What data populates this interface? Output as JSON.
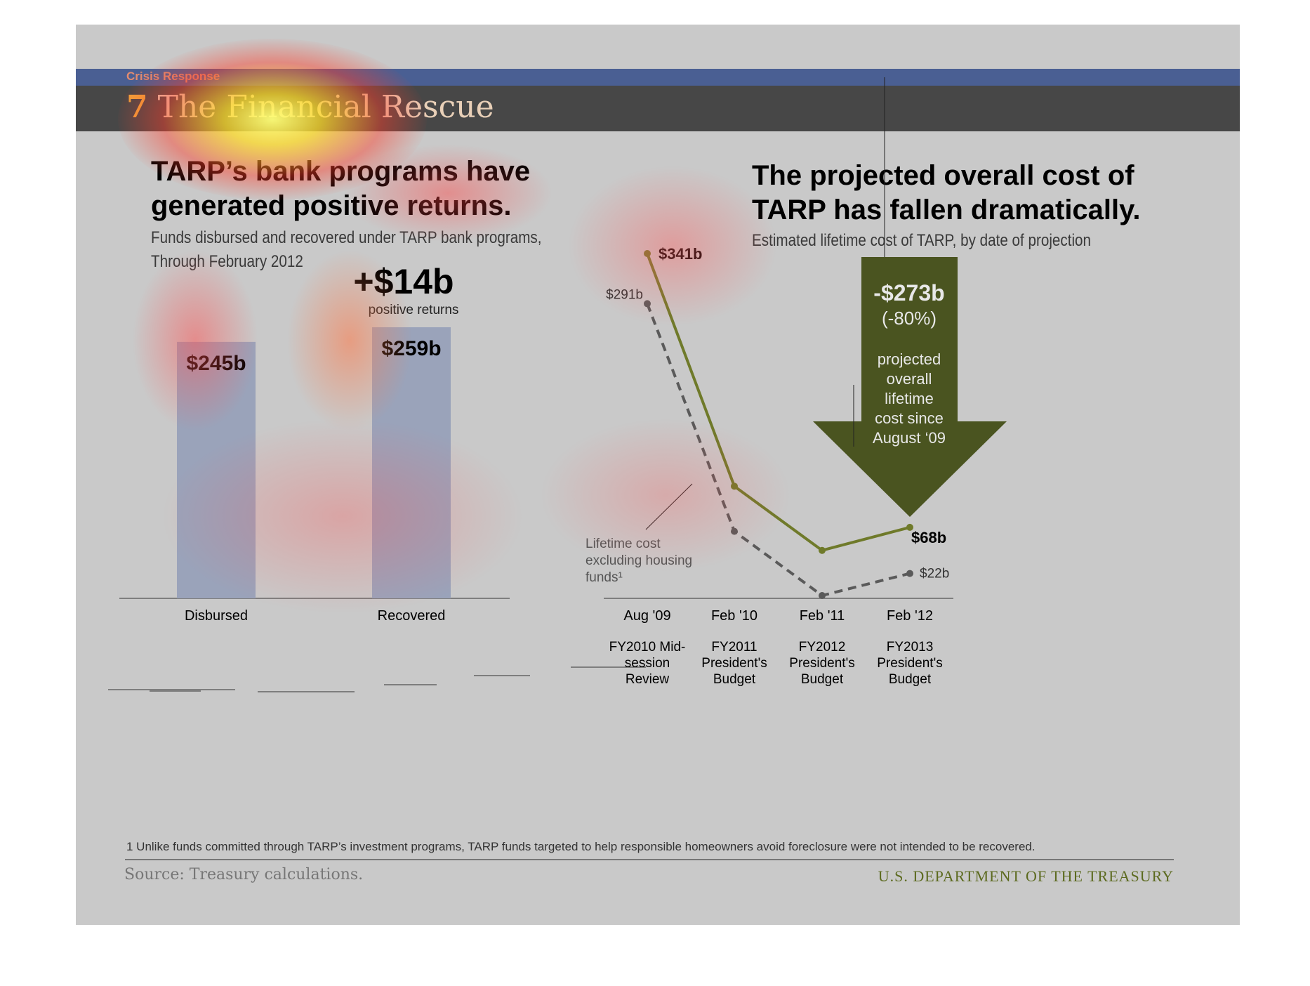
{
  "header": {
    "section_label": "Crisis Response",
    "title_number": "7",
    "title_text": "The Financial Rescue"
  },
  "left": {
    "heading_line1": "TARP’s bank programs have",
    "heading_line2": "generated positive returns.",
    "sub_line1": "Funds disbursed and recovered under TARP bank programs,",
    "sub_line2": "Through February 2012",
    "difference_label": "+$14b",
    "difference_sublabel": "positive returns"
  },
  "right": {
    "heading_line1": "The projected overall cost of",
    "heading_line2": "TARP has fallen dramatically.",
    "sub_line1": "Estimated lifetime cost of TARP, by date of projection",
    "arrow_value": "-$273b",
    "arrow_percent": "(-80%)",
    "arrow_text": [
      "projected",
      "overall",
      "lifetime",
      "cost since",
      "August ‘09"
    ],
    "annotation": [
      "Lifetime cost",
      "excluding housing",
      "funds¹"
    ]
  },
  "chart_data": [
    {
      "type": "bar",
      "categories": [
        "Disbursed",
        "Recovered"
      ],
      "values": [
        245,
        259
      ],
      "data_labels": [
        "$245b",
        "$259b"
      ],
      "ylim": [
        0,
        259
      ],
      "color": "#9aa3ba"
    },
    {
      "type": "line",
      "x": [
        "Aug '09",
        "Feb '10",
        "Feb '11",
        "Feb '12"
      ],
      "x_sublabels": [
        [
          "FY2010 Mid-",
          "session",
          "Review"
        ],
        [
          "FY2011",
          "President's",
          "Budget"
        ],
        [
          "FY2012",
          "President's",
          "Budget"
        ],
        [
          "FY2013",
          "President's",
          "Budget"
        ]
      ],
      "series": [
        {
          "values": [
            341,
            109,
            45,
            68
          ],
          "style": "solid",
          "color": "#6f7a2a",
          "point_labels": [
            "$341b",
            "",
            "",
            "$68b"
          ]
        },
        {
          "name": "Lifetime cost excluding housing funds¹",
          "values": [
            291,
            64,
            0,
            22
          ],
          "style": "dashed",
          "color": "#5a5a5a",
          "point_labels": [
            "$291b",
            "",
            "",
            "$22b"
          ]
        }
      ],
      "ylim": [
        0,
        341
      ]
    }
  ],
  "footer": {
    "footnote": "1 Unlike funds committed through TARP’s investment programs, TARP funds targeted to help responsible homeowners avoid foreclosure were not intended to be recovered.",
    "source": "Source: Treasury calculations.",
    "agency": "U.S. DEPARTMENT OF THE TREASURY"
  }
}
